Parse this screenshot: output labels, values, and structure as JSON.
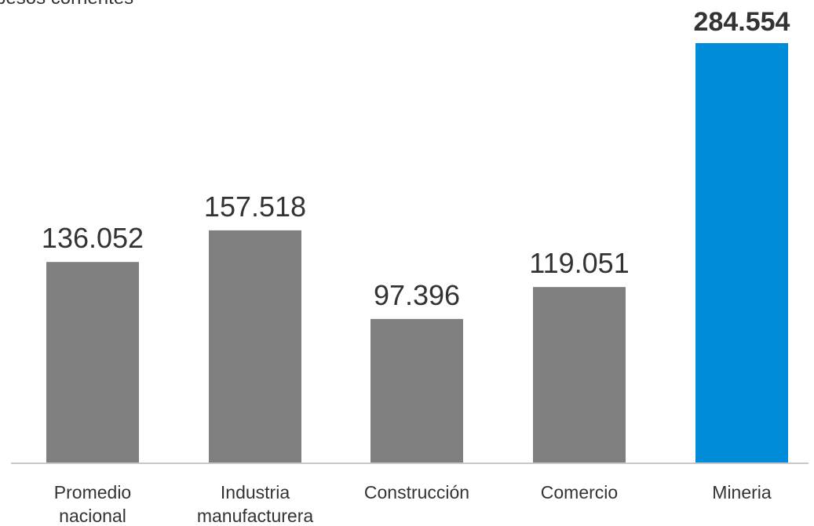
{
  "chart_data": {
    "type": "bar",
    "subtitle": "En pesos corrientes",
    "categories": [
      [
        "Promedio",
        "nacional"
      ],
      [
        "Industria",
        "manufacturera"
      ],
      [
        "Construcción"
      ],
      [
        "Comercio"
      ],
      [
        "Mineria"
      ]
    ],
    "values": [
      136052,
      157518,
      97396,
      119051,
      284554
    ],
    "value_labels": [
      "136.052",
      "157.518",
      "97.396",
      "119.051",
      "284.554"
    ],
    "highlight_index": 4,
    "colors": {
      "default": "#808080",
      "highlight": "#008CD9",
      "axis": "#c8c8c8",
      "text": "#333333"
    },
    "ylim": [
      0,
      284554
    ],
    "grid": false,
    "legend": "none"
  }
}
